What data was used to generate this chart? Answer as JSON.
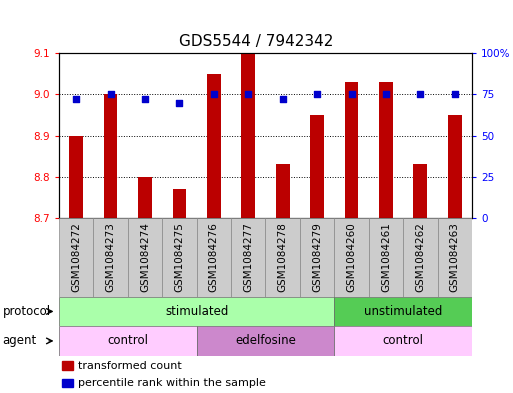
{
  "title": "GDS5544 / 7942342",
  "samples": [
    "GSM1084272",
    "GSM1084273",
    "GSM1084274",
    "GSM1084275",
    "GSM1084276",
    "GSM1084277",
    "GSM1084278",
    "GSM1084279",
    "GSM1084260",
    "GSM1084261",
    "GSM1084262",
    "GSM1084263"
  ],
  "bar_values": [
    8.9,
    9.0,
    8.8,
    8.77,
    9.05,
    9.1,
    8.83,
    8.95,
    9.03,
    9.03,
    8.83,
    8.95
  ],
  "percentile_values": [
    72,
    75,
    72,
    70,
    75,
    75,
    72,
    75,
    75,
    75,
    75,
    75
  ],
  "bar_bottom": 8.7,
  "ylim_left": [
    8.7,
    9.1
  ],
  "ylim_right": [
    0,
    100
  ],
  "yticks_left": [
    8.7,
    8.8,
    8.9,
    9.0,
    9.1
  ],
  "yticks_right": [
    0,
    25,
    50,
    75,
    100
  ],
  "ytick_labels_right": [
    "0",
    "25",
    "50",
    "75",
    "100%"
  ],
  "bar_color": "#bb0000",
  "percentile_color": "#0000cc",
  "protocol_groups": [
    {
      "label": "stimulated",
      "start": 0,
      "end": 8,
      "color": "#aaffaa"
    },
    {
      "label": "unstimulated",
      "start": 8,
      "end": 12,
      "color": "#55cc55"
    }
  ],
  "agent_groups": [
    {
      "label": "control",
      "start": 0,
      "end": 4,
      "color": "#ffccff"
    },
    {
      "label": "edelfosine",
      "start": 4,
      "end": 8,
      "color": "#cc88cc"
    },
    {
      "label": "control",
      "start": 8,
      "end": 12,
      "color": "#ffccff"
    }
  ],
  "legend_bar_label": "transformed count",
  "legend_pct_label": "percentile rank within the sample",
  "title_fontsize": 11,
  "tick_fontsize": 7.5,
  "row_label_fontsize": 8.5,
  "row_content_fontsize": 8.5,
  "legend_fontsize": 8
}
